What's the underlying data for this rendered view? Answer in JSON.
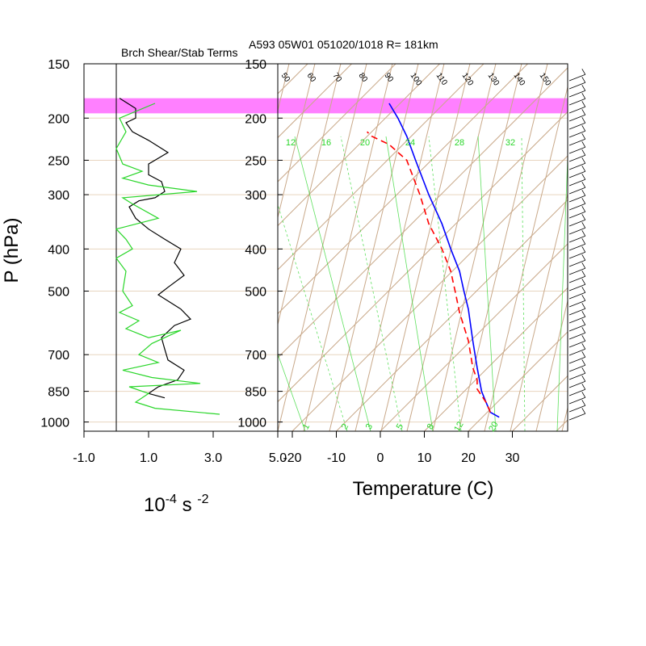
{
  "header": {
    "title_right": "A593 05W01 051020/1018 R= 181km",
    "title_left": "Brch Shear/Stab Terms"
  },
  "axes": {
    "ylabel": "P (hPa)",
    "xlabel_right": "Temperature (C)",
    "xlabel_left_base": "10",
    "xlabel_left_exp1": "-4",
    "xlabel_left_mid": " s ",
    "xlabel_left_exp2": "-2"
  },
  "colors": {
    "highlight_band": "#ff80ff",
    "isotherm": "#c9a98a",
    "mixing_ratio": "#2ad62a",
    "temperature": "#0000ff",
    "dewpoint": "#ff0000",
    "shear": "#000000",
    "stability": "#2ad62a"
  },
  "chart_data": [
    {
      "type": "line",
      "panel": "left",
      "title": "Brch Shear/Stab Terms",
      "xlabel": "10^-4 s^-2",
      "xlim": [
        -1.0,
        5.0
      ],
      "x_tick_labels": [
        "-1.0",
        "1.0",
        "3.0",
        "5.0"
      ],
      "y_scale": "log",
      "ylim": [
        1000,
        150
      ],
      "y_ticks": [
        150,
        200,
        250,
        300,
        400,
        500,
        700,
        850,
        1000
      ],
      "highlight_band_hpa": [
        180,
        195
      ],
      "series": [
        {
          "name": "",
          "color": "black",
          "points": [
            [
              0.1,
              180
            ],
            [
              0.6,
              190
            ],
            [
              0.6,
              200
            ],
            [
              0.3,
              205
            ],
            [
              0.5,
              215
            ],
            [
              1.0,
              225
            ],
            [
              1.6,
              240
            ],
            [
              1.0,
              255
            ],
            [
              1.0,
              270
            ],
            [
              1.4,
              280
            ],
            [
              1.5,
              295
            ],
            [
              1.2,
              305
            ],
            [
              0.7,
              310
            ],
            [
              0.4,
              320
            ],
            [
              0.6,
              340
            ],
            [
              1.0,
              360
            ],
            [
              1.5,
              380
            ],
            [
              2.0,
              400
            ],
            [
              1.8,
              430
            ],
            [
              2.1,
              460
            ],
            [
              1.6,
              490
            ],
            [
              1.3,
              510
            ],
            [
              2.0,
              550
            ],
            [
              2.3,
              580
            ],
            [
              1.8,
              600
            ],
            [
              1.4,
              640
            ],
            [
              1.5,
              680
            ],
            [
              1.6,
              720
            ],
            [
              2.1,
              760
            ],
            [
              1.9,
              800
            ],
            [
              1.3,
              830
            ],
            [
              1.0,
              860
            ],
            [
              1.5,
              880
            ]
          ]
        },
        {
          "name": "",
          "color": "green",
          "points": [
            [
              1.2,
              185
            ],
            [
              0.1,
              200
            ],
            [
              0.3,
              215
            ],
            [
              0.0,
              235
            ],
            [
              0.2,
              255
            ],
            [
              0.8,
              265
            ],
            [
              0.2,
              275
            ],
            [
              1.0,
              285
            ],
            [
              2.5,
              295
            ],
            [
              0.2,
              305
            ],
            [
              0.5,
              315
            ],
            [
              1.3,
              340
            ],
            [
              0.0,
              360
            ],
            [
              0.3,
              380
            ],
            [
              0.5,
              400
            ],
            [
              0.0,
              420
            ],
            [
              0.3,
              450
            ],
            [
              0.2,
              500
            ],
            [
              0.5,
              540
            ],
            [
              0.1,
              560
            ],
            [
              0.7,
              585
            ],
            [
              0.3,
              610
            ],
            [
              1.0,
              640
            ],
            [
              2.0,
              615
            ],
            [
              1.1,
              660
            ],
            [
              0.7,
              700
            ],
            [
              1.3,
              730
            ],
            [
              0.2,
              760
            ],
            [
              1.1,
              790
            ],
            [
              2.6,
              815
            ],
            [
              0.4,
              830
            ],
            [
              1.0,
              860
            ],
            [
              0.6,
              900
            ],
            [
              1.2,
              930
            ],
            [
              3.2,
              960
            ]
          ]
        }
      ]
    },
    {
      "type": "line",
      "panel": "right",
      "title": "A593 05W01 051020/1018 R= 181km",
      "xlabel": "Temperature (C)",
      "x_tick_labels": [
        "-20",
        "-10",
        "0",
        "10",
        "20",
        "30"
      ],
      "y_scale": "log",
      "ylim": [
        1000,
        150
      ],
      "y_ticks": [
        150,
        200,
        250,
        300,
        400,
        500,
        700,
        850,
        1000
      ],
      "mixing_ratio_top_labels": [
        "12",
        "16",
        "20",
        "24",
        "28",
        "32"
      ],
      "mixing_ratio_bottom_labels": [
        "1",
        "2",
        "3",
        "5",
        "8",
        "12",
        "20"
      ],
      "skew_labels": [
        "50",
        "60",
        "70",
        "80",
        "90",
        "100",
        "110",
        "120",
        "130",
        "140",
        "150"
      ],
      "series": [
        {
          "name": "",
          "style": "solid",
          "color": "blue",
          "points_plot_xT": [
            [
              27,
              975
            ],
            [
              25,
              950
            ],
            [
              24,
              900
            ],
            [
              23,
              850
            ],
            [
              22,
              750
            ],
            [
              21,
              650
            ],
            [
              20,
              550
            ],
            [
              19,
              500
            ],
            [
              18,
              450
            ],
            [
              16,
              400
            ],
            [
              14,
              350
            ],
            [
              11,
              300
            ],
            [
              8,
              250
            ],
            [
              6,
              220
            ],
            [
              4,
              200
            ],
            [
              2,
              185
            ]
          ]
        },
        {
          "name": "",
          "style": "dashed",
          "color": "red",
          "points_plot_xT": [
            [
              25,
              950
            ],
            [
              24,
              900
            ],
            [
              22,
              840
            ],
            [
              22,
              800
            ],
            [
              21,
              750
            ],
            [
              20,
              650
            ],
            [
              18,
              560
            ],
            [
              17,
              500
            ],
            [
              16,
              450
            ],
            [
              14,
              400
            ],
            [
              11,
              350
            ],
            [
              9,
              300
            ],
            [
              6,
              250
            ],
            [
              2,
              230
            ],
            [
              -2,
              220
            ],
            [
              -3,
              215
            ]
          ]
        }
      ]
    }
  ]
}
